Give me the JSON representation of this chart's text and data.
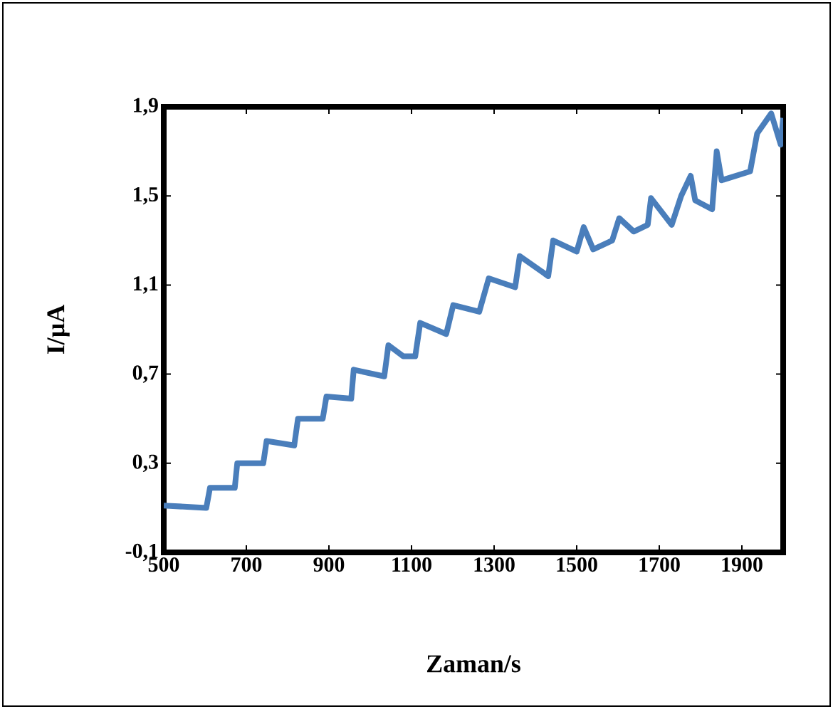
{
  "chart_data": {
    "type": "line",
    "xlabel": "Zaman/s",
    "ylabel": "I/µA",
    "xlim": [
      500,
      2000
    ],
    "xticks": [
      500,
      700,
      900,
      1100,
      1300,
      1500,
      1700,
      1900
    ],
    "ylim": [
      -0.1,
      1.9
    ],
    "yticks": [
      {
        "value": -0.1,
        "label": "-0,1"
      },
      {
        "value": 0.3,
        "label": "0,3"
      },
      {
        "value": 0.7,
        "label": "0,7"
      },
      {
        "value": 1.1,
        "label": "1,1"
      },
      {
        "value": 1.5,
        "label": "1,5"
      },
      {
        "value": 1.9,
        "label": "1,9"
      }
    ],
    "grid": false,
    "marker": "none",
    "line_style": "solid",
    "series": [
      {
        "color": "#4a7ebb",
        "x": [
          500,
          603,
          612,
          672,
          678,
          741,
          749,
          816,
          825,
          885,
          894,
          954,
          960,
          1034,
          1044,
          1080,
          1109,
          1121,
          1184,
          1201,
          1264,
          1287,
          1351,
          1362,
          1431,
          1443,
          1500,
          1517,
          1540,
          1586,
          1603,
          1638,
          1672,
          1680,
          1730,
          1753,
          1776,
          1787,
          1828,
          1839,
          1851,
          1920,
          1937,
          1971,
          1994,
          2000
        ],
        "values": [
          0.11,
          0.1,
          0.19,
          0.19,
          0.3,
          0.3,
          0.4,
          0.38,
          0.5,
          0.5,
          0.6,
          0.59,
          0.72,
          0.69,
          0.83,
          0.78,
          0.78,
          0.93,
          0.88,
          1.01,
          0.98,
          1.13,
          1.09,
          1.23,
          1.14,
          1.3,
          1.25,
          1.36,
          1.26,
          1.3,
          1.4,
          1.34,
          1.37,
          1.49,
          1.37,
          1.5,
          1.59,
          1.48,
          1.44,
          1.7,
          1.57,
          1.61,
          1.78,
          1.87,
          1.73,
          1.85
        ]
      }
    ]
  }
}
